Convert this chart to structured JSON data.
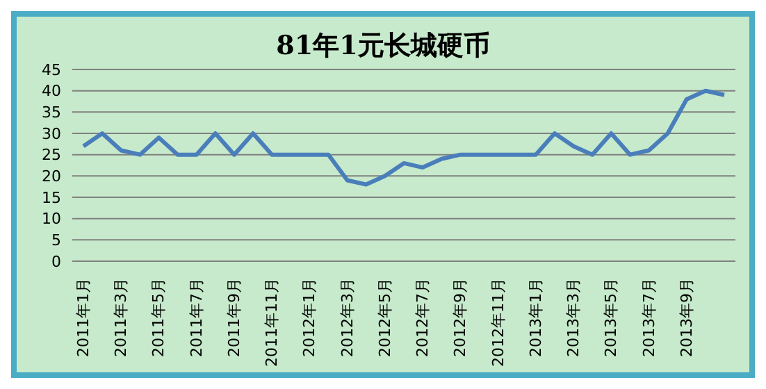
{
  "chart_data": {
    "type": "line",
    "title": "81年1元长城硬币",
    "categories": [
      "2011年1月",
      null,
      "2011年3月",
      null,
      "2011年5月",
      null,
      "2011年7月",
      null,
      "2011年9月",
      null,
      "2011年11月",
      null,
      "2012年1月",
      null,
      "2012年3月",
      null,
      "2012年5月",
      null,
      "2012年7月",
      null,
      "2012年9月",
      null,
      "2012年11月",
      null,
      "2013年1月",
      null,
      "2013年3月",
      null,
      "2013年5月",
      null,
      "2013年7月",
      null,
      "2013年9月",
      null,
      null
    ],
    "series": [
      {
        "color": "#4a7ebb",
        "values": [
          27,
          30,
          26,
          25,
          29,
          25,
          25,
          30,
          25,
          30,
          25,
          25,
          25,
          25,
          19,
          18,
          20,
          23,
          22,
          24,
          25,
          25,
          25,
          25,
          25,
          30,
          27,
          25,
          30,
          25,
          26,
          30,
          38,
          40,
          39
        ]
      }
    ],
    "ylim": [
      0,
      45
    ],
    "yticks": [
      0,
      5,
      10,
      15,
      20,
      25,
      30,
      35,
      40,
      45
    ],
    "grid": "y",
    "legend": false,
    "marker": "none",
    "line_style": "solid"
  }
}
